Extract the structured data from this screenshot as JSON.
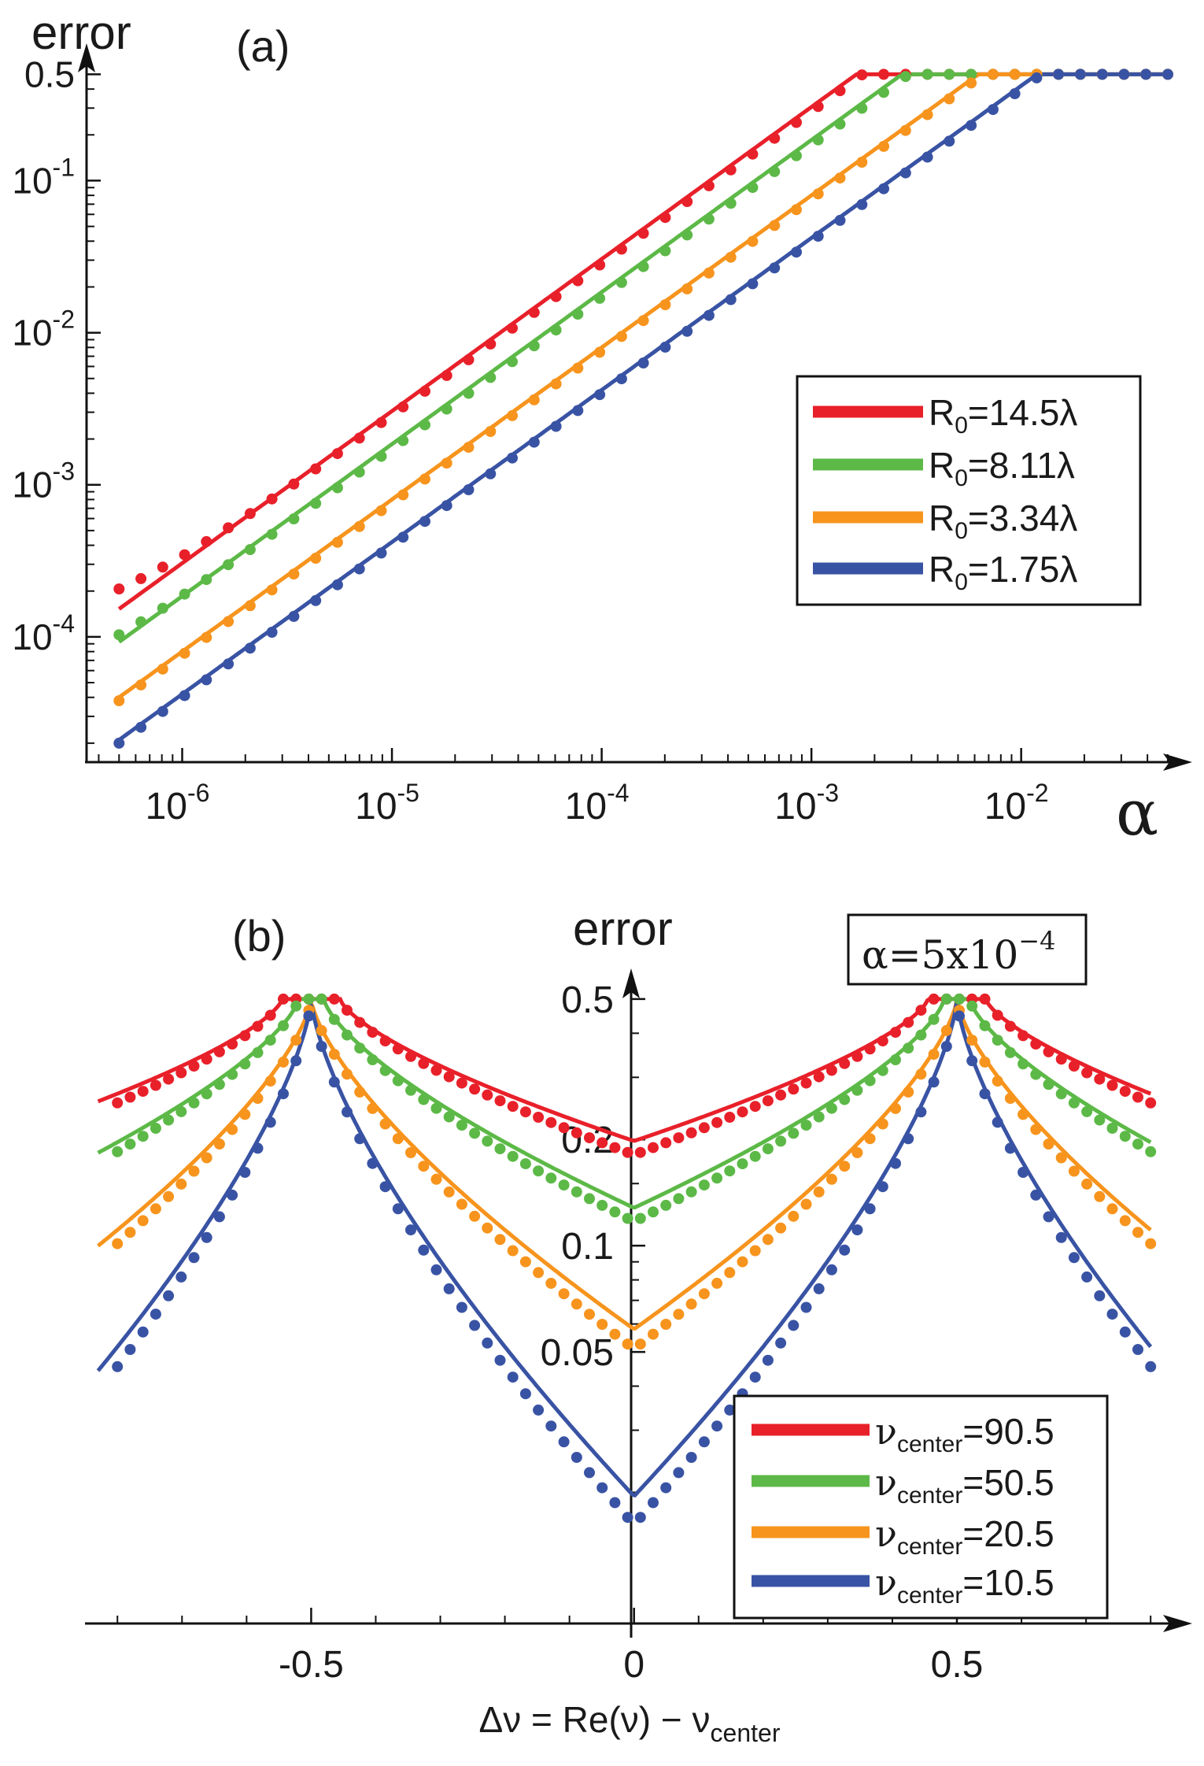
{
  "chart_data": [
    {
      "id": "a",
      "panel_label": "(a)",
      "type": "line",
      "scale": "log-log",
      "ylabel": "error",
      "xlabel": "α",
      "xlim": [
        3.5e-07,
        0.055
      ],
      "ylim": [
        1.5e-05,
        0.8
      ],
      "x_ticks": [
        {
          "value": 1e-06,
          "base": "10",
          "exp": "-6"
        },
        {
          "value": 1e-05,
          "base": "10",
          "exp": "-5"
        },
        {
          "value": 0.0001,
          "base": "10",
          "exp": "-4"
        },
        {
          "value": 0.001,
          "base": "10",
          "exp": "-3"
        },
        {
          "value": 0.01,
          "base": "10",
          "exp": "-2"
        }
      ],
      "y_ticks": [
        {
          "value": 0.5,
          "label": "0.5"
        },
        {
          "value": 0.1,
          "base": "10",
          "exp": "-1"
        },
        {
          "value": 0.01,
          "base": "10",
          "exp": "-2"
        },
        {
          "value": 0.001,
          "base": "10",
          "exp": "-3"
        },
        {
          "value": 0.0001,
          "base": "10",
          "exp": "-4"
        }
      ],
      "x_range": [
        5e-07,
        0.05
      ],
      "series": [
        {
          "name": "R0=14.5λ",
          "legend_main": "R",
          "legend_sub": "0",
          "legend_rest": "=14.5λ",
          "color": "#e8202a",
          "line_coef": 305,
          "dot_coef": 285,
          "dot_low_bump": 1.45,
          "saturation": 0.5
        },
        {
          "name": "R0=8.11λ",
          "legend_main": "R",
          "legend_sub": "0",
          "legend_rest": "=8.11λ",
          "color": "#5cb947",
          "line_coef": 185,
          "dot_coef": 172,
          "dot_low_bump": 1.2,
          "saturation": 0.5
        },
        {
          "name": "R0=3.34λ",
          "legend_main": "R",
          "legend_sub": "0",
          "legend_rest": "=3.34λ",
          "color": "#f7941d",
          "line_coef": 80,
          "dot_coef": 76,
          "dot_low_bump": 1.0,
          "saturation": 0.5
        },
        {
          "name": "R0=1.75λ",
          "legend_main": "R",
          "legend_sub": "0",
          "legend_rest": "=1.75λ",
          "color": "#3953a4",
          "line_coef": 42,
          "dot_coef": 40,
          "dot_low_bump": 1.0,
          "saturation": 0.5
        }
      ],
      "legend_position": "middle-right"
    },
    {
      "id": "b",
      "panel_label": "(b)",
      "type": "line",
      "scale": "linear-x, log-y",
      "ylabel": "error",
      "xlabel_parts": {
        "lhs": "Δν = Re(ν) − ν",
        "sub": "center"
      },
      "annotation": {
        "alpha": "α",
        "eq": "=5x10",
        "exp": "−4"
      },
      "xlim": [
        -0.86,
        0.84
      ],
      "ylim": [
        0.0085,
        0.58
      ],
      "x_ticks": [
        {
          "value": -0.5,
          "label": "-0.5"
        },
        {
          "value": 0,
          "label": "0"
        },
        {
          "value": 0.5,
          "label": "0.5"
        }
      ],
      "y_ticks": [
        {
          "value": 0.5,
          "label": "0.5"
        },
        {
          "value": 0.2,
          "label": "0.2"
        },
        {
          "value": 0.1,
          "label": "0.1"
        },
        {
          "value": 0.05,
          "label": "0.05"
        }
      ],
      "x_range": [
        -0.83,
        0.8
      ],
      "series": [
        {
          "name": "νcenter=90.5",
          "legend_main": "ν",
          "legend_sub": "center",
          "legend_rest": "=90.5",
          "color": "#e8202a",
          "line_min": 0.198,
          "dot_min": 0.181,
          "plateau_half_width": 0.045
        },
        {
          "name": "νcenter=50.5",
          "legend_main": "ν",
          "legend_sub": "center",
          "legend_rest": "=50.5",
          "color": "#5cb947",
          "line_min": 0.128,
          "dot_min": 0.117,
          "plateau_half_width": 0.02
        },
        {
          "name": "νcenter=20.5",
          "legend_main": "ν",
          "legend_sub": "center",
          "legend_rest": "=20.5",
          "color": "#f7941d",
          "line_min": 0.058,
          "dot_min": 0.051,
          "plateau_half_width": 0.0
        },
        {
          "name": "νcenter=10.5",
          "legend_main": "ν",
          "legend_sub": "center",
          "legend_rest": "=10.5",
          "color": "#3953a4",
          "line_min": 0.0195,
          "dot_min": 0.0162,
          "plateau_half_width": 0.0
        }
      ],
      "legend_position": "bottom-right"
    }
  ]
}
